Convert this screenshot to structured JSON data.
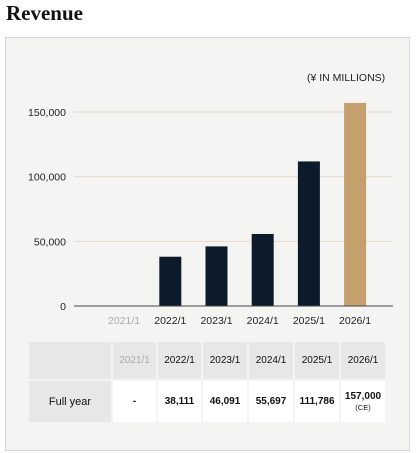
{
  "page": {
    "title": "Revenue"
  },
  "chart_data": {
    "type": "bar",
    "title": "",
    "unit_label": "(¥ IN MILLIONS)",
    "xlabel": "",
    "ylabel": "",
    "ylim": [
      0,
      150000
    ],
    "yticks": [
      0,
      50000,
      100000,
      150000
    ],
    "ytick_labels": [
      "0",
      "50,000",
      "100,000",
      "150,000"
    ],
    "grid": true,
    "categories": [
      "2021/1",
      "2022/1",
      "2023/1",
      "2024/1",
      "2025/1",
      "2026/1"
    ],
    "values": [
      null,
      38111,
      46091,
      55697,
      111786,
      157000
    ],
    "bar_colors": [
      "#0c1b2a",
      "#0c1b2a",
      "#0c1b2a",
      "#0c1b2a",
      "#0c1b2a",
      "#c3a06e"
    ],
    "faded_categories": [
      "2021/1"
    ]
  },
  "table": {
    "corner": "",
    "headers": [
      "2021/1",
      "2022/1",
      "2023/1",
      "2024/1",
      "2025/1",
      "2026/1"
    ],
    "row_label": "Full year",
    "cells": [
      "-",
      "38,111",
      "46,091",
      "55,697",
      "111,786",
      "157,000"
    ],
    "forecast_note": "(CE)"
  },
  "colors": {
    "bar": "#0c1b2a",
    "forecast_bar": "#c3a06e",
    "gridline": "#e8d9c4",
    "axis": "#444444",
    "faded_text": "#a9a9a9"
  }
}
